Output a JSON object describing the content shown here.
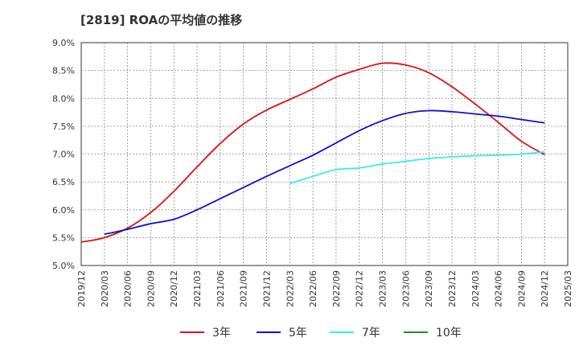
{
  "chart_data": {
    "type": "line",
    "title": "[2819]  ROAの平均値の推移",
    "x": [
      "2019/12",
      "2020/03",
      "2020/06",
      "2020/09",
      "2020/12",
      "2021/03",
      "2021/06",
      "2021/09",
      "2021/12",
      "2022/03",
      "2022/06",
      "2022/09",
      "2022/12",
      "2023/03",
      "2023/06",
      "2023/09",
      "2023/12",
      "2024/03",
      "2024/06",
      "2024/09",
      "2024/12",
      "2025/03"
    ],
    "y_ticks": [
      "5.0%",
      "5.5%",
      "6.0%",
      "6.5%",
      "7.0%",
      "7.5%",
      "8.0%",
      "8.5%",
      "9.0%"
    ],
    "ylim": [
      5.0,
      9.0
    ],
    "grid": true,
    "legend_position": "bottom",
    "series": [
      {
        "name": "3年",
        "color": "#dd1111",
        "values": [
          5.42,
          5.5,
          5.67,
          5.95,
          6.33,
          6.77,
          7.19,
          7.54,
          7.79,
          7.98,
          8.17,
          8.38,
          8.52,
          8.63,
          8.6,
          8.46,
          8.21,
          7.9,
          7.57,
          7.23,
          6.99,
          null
        ]
      },
      {
        "name": "5年",
        "color": "#1111cc",
        "values": [
          null,
          5.56,
          5.65,
          5.75,
          5.83,
          6.0,
          6.2,
          6.4,
          6.6,
          6.79,
          6.98,
          7.2,
          7.42,
          7.6,
          7.73,
          7.78,
          7.76,
          7.72,
          7.68,
          7.62,
          7.56,
          null
        ]
      },
      {
        "name": "7年",
        "color": "#33eeee",
        "values": [
          null,
          null,
          null,
          null,
          null,
          null,
          null,
          null,
          null,
          6.47,
          6.6,
          6.72,
          6.75,
          6.82,
          6.87,
          6.92,
          6.95,
          6.97,
          6.98,
          7.0,
          7.04,
          null
        ]
      },
      {
        "name": "10年",
        "color": "#228822",
        "values": [
          null,
          null,
          null,
          null,
          null,
          null,
          null,
          null,
          null,
          null,
          null,
          null,
          null,
          null,
          null,
          null,
          null,
          null,
          null,
          null,
          null,
          null
        ]
      }
    ]
  }
}
